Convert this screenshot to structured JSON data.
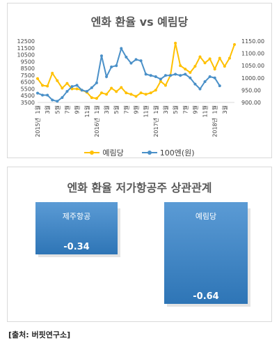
{
  "chart_data": [
    {
      "type": "line",
      "title": "엔화 환율 vs 예림당",
      "y_left": {
        "ticks": [
          3500,
          4500,
          5500,
          6500,
          7500,
          8500,
          9500,
          10500,
          11500,
          12500
        ],
        "range": [
          3500,
          12500
        ]
      },
      "y_right": {
        "ticks": [
          "900.00",
          "950.00",
          "1000.00",
          "1050.00",
          "1100.00",
          "1150.00"
        ],
        "range": [
          900,
          1150
        ]
      },
      "x_month_labels": [
        "1월",
        "3월",
        "5월",
        "7월",
        "9월",
        "11월",
        "1월",
        "3월",
        "5월",
        "7월",
        "9월",
        "11월",
        "1월",
        "3월",
        "5월",
        "7월",
        "9월",
        "11월",
        "1월",
        "3월"
      ],
      "x_year_labels": [
        {
          "label": "2015년",
          "index": 0
        },
        {
          "label": "2016년",
          "index": 12
        },
        {
          "label": "2017년",
          "index": 24
        },
        {
          "label": "2018년",
          "index": 36
        }
      ],
      "legend_position": "bottom",
      "series": [
        {
          "name": "예림당",
          "axis": "left",
          "color": "#ffc000",
          "values": [
            7000,
            6000,
            5900,
            7800,
            6700,
            5600,
            6300,
            5500,
            5500,
            5300,
            5000,
            4200,
            4100,
            4900,
            4700,
            5600,
            5100,
            5700,
            4900,
            4700,
            4400,
            4900,
            4700,
            4900,
            5300,
            6600,
            6000,
            7500,
            12200,
            8900,
            8400,
            7900,
            8800,
            10200,
            9300,
            9900,
            8400,
            10000,
            8800,
            10000,
            12000
          ],
          "x_positions": [
            0,
            1,
            2,
            3,
            4,
            5,
            6,
            7,
            8,
            9,
            10,
            11,
            12,
            13,
            14,
            15,
            16,
            17,
            18,
            19,
            20,
            21,
            22,
            23,
            24,
            25,
            26,
            27,
            28,
            29,
            30,
            31,
            32,
            33,
            34,
            35,
            36,
            37,
            38,
            39,
            40
          ]
        },
        {
          "name": "100엔(원)",
          "axis": "right",
          "color": "#4a90c8",
          "values": [
            938,
            930,
            930,
            910,
            905,
            920,
            945,
            965,
            970,
            950,
            945,
            960,
            980,
            1090,
            1005,
            1045,
            1050,
            1120,
            1085,
            1060,
            1075,
            1070,
            1015,
            1010,
            1005,
            995,
            1010,
            1010,
            1015,
            1010,
            1015,
            1000,
            975,
            955,
            985,
            1005,
            1000,
            968
          ],
          "x_positions": [
            0,
            1,
            2,
            3,
            4,
            5,
            6,
            7,
            8,
            9,
            10,
            11,
            12,
            13,
            14,
            15,
            16,
            17,
            18,
            19,
            20,
            21,
            22,
            23,
            24,
            25,
            26,
            27,
            28,
            29,
            30,
            31,
            32,
            33,
            34,
            35,
            36,
            37
          ]
        }
      ]
    },
    {
      "type": "bar",
      "title": "엔화 환율 저가항공주 상관관계",
      "categories": [
        "제주항공",
        "예림당"
      ],
      "values": [
        -0.34,
        -0.64
      ],
      "value_labels": [
        "-0.34",
        "-0.64"
      ]
    }
  ],
  "legend": {
    "series1": "예림당",
    "series2": "100엔(원)"
  },
  "source": "[출처: 버핏연구소]"
}
